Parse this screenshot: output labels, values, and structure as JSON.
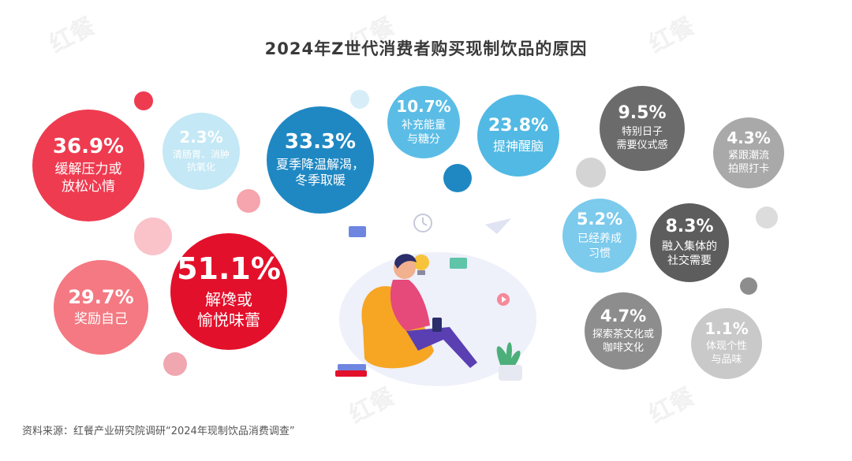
{
  "title": "2024年Z世代消费者购买现制饮品的原因",
  "source": "资料来源：红餐产业研究院调研“2024年现制饮品消费调查”",
  "watermark_text": "红餐 产业研究院",
  "chart_data": {
    "type": "bubble",
    "title": "2024年Z世代消费者购买现制饮品的原因",
    "unit": "%",
    "items": [
      {
        "label": "解馋或\n愉悦味蕾",
        "value": 51.1,
        "display": "51.1%",
        "color": "#e3102b"
      },
      {
        "label": "缓解压力或\n放松心情",
        "value": 36.9,
        "display": "36.9%",
        "color": "#ee3b50"
      },
      {
        "label": "夏季降温解渴，\n冬季取暖",
        "value": 33.3,
        "display": "33.3%",
        "color": "#1f88c3"
      },
      {
        "label": "奖励自己",
        "value": 29.7,
        "display": "29.7%",
        "color": "#f47982"
      },
      {
        "label": "提神醒脑",
        "value": 23.8,
        "display": "23.8%",
        "color": "#51b9e3"
      },
      {
        "label": "补充能量\n与糖分",
        "value": 10.7,
        "display": "10.7%",
        "color": "#5bbde6"
      },
      {
        "label": "特别日子\n需要仪式感",
        "value": 9.5,
        "display": "9.5%",
        "color": "#6b6b6b"
      },
      {
        "label": "融入集体的\n社交需要",
        "value": 8.3,
        "display": "8.3%",
        "color": "#5d5d5d"
      },
      {
        "label": "已经养成\n习惯",
        "value": 5.2,
        "display": "5.2%",
        "color": "#7ccaec"
      },
      {
        "label": "探索茶文化或\n咖啡文化",
        "value": 4.7,
        "display": "4.7%",
        "color": "#8d8d8d"
      },
      {
        "label": "紧跟潮流\n拍照打卡",
        "value": 4.3,
        "display": "4.3%",
        "color": "#a9a9a9"
      },
      {
        "label": "清肠胃、消肿\n抗氧化",
        "value": 2.3,
        "display": "2.3%",
        "color": "#c4e8f5"
      },
      {
        "label": "体现个性\n与品味",
        "value": 1.1,
        "display": "1.1%",
        "color": "#c9c9c9"
      }
    ]
  }
}
